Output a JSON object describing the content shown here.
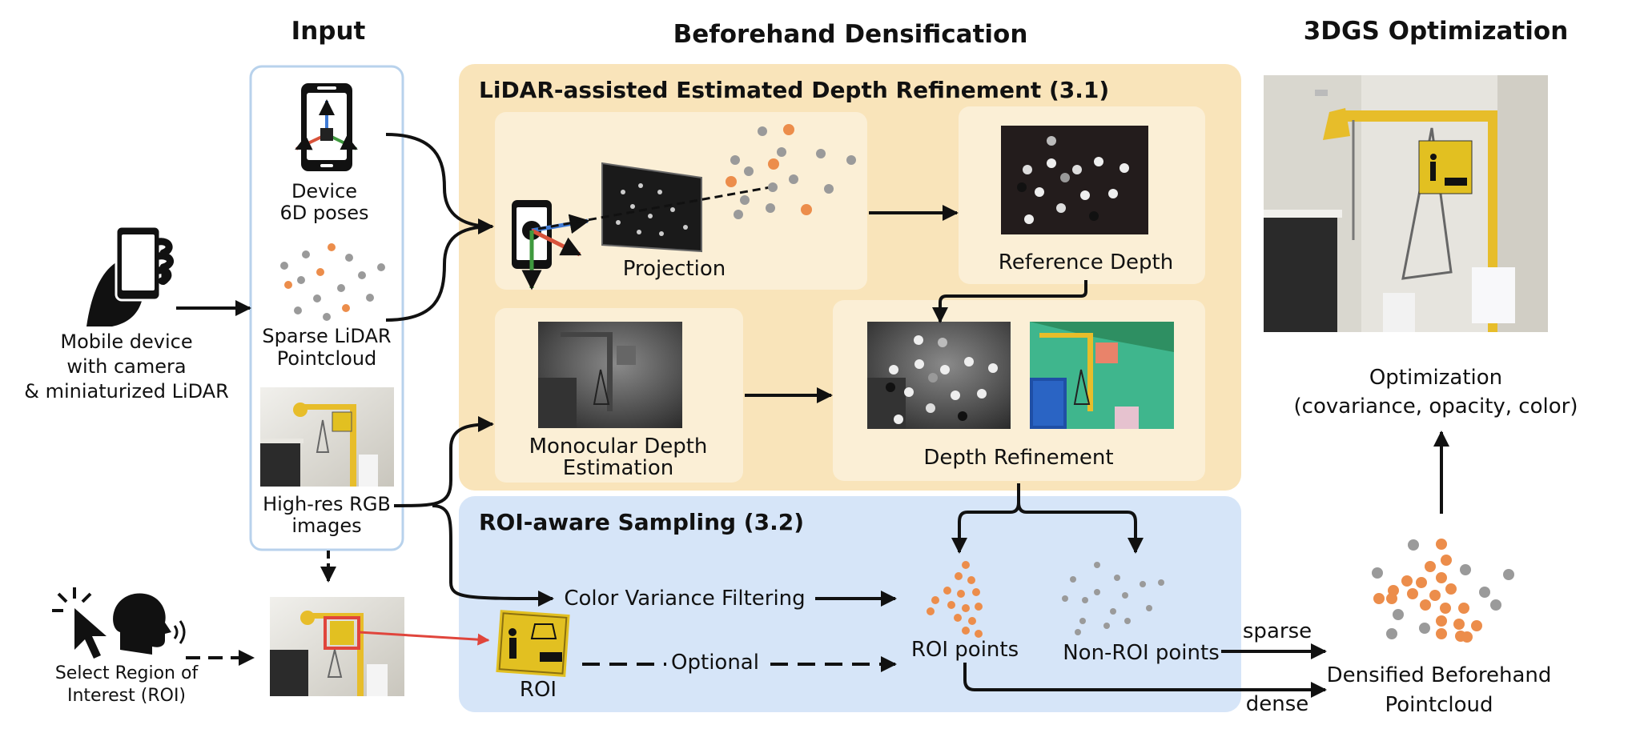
{
  "headings": {
    "input": "Input",
    "beforehand": "Beforehand Densification",
    "optimization": "3DGS Optimization"
  },
  "panels": {
    "lidar_title": "LiDAR-assisted Estimated Depth Refinement (3.1)",
    "roi_title": "ROI-aware Sampling (3.2)"
  },
  "input": {
    "device_poses": [
      "Device",
      "6D poses"
    ],
    "sparse_lidar": [
      "Sparse LiDAR",
      "Pointcloud"
    ],
    "rgb_images": [
      "High-res RGB",
      "images"
    ]
  },
  "mobile_device": [
    "Mobile device",
    "with camera",
    "& miniaturized LiDAR"
  ],
  "select_roi": [
    "Select Region of",
    "Interest (ROI)"
  ],
  "lidar_panel": {
    "projection": "Projection",
    "reference_depth": "Reference Depth",
    "monocular": [
      "Monocular Depth",
      "Estimation"
    ],
    "depth_refinement": "Depth Refinement"
  },
  "roi_panel": {
    "color_variance": "Color Variance Filtering",
    "roi": "ROI",
    "optional": "Optional",
    "roi_points": "ROI points",
    "non_roi_points": "Non-ROI points"
  },
  "right": {
    "optimization": [
      "Optimization",
      "(covariance, opacity, color)"
    ],
    "densified": [
      "Densified Beforehand",
      "Pointcloud"
    ],
    "sparse": "sparse",
    "dense": "dense"
  },
  "colors": {
    "lidar_panel_bg": "#f9e4ba",
    "lidar_box_bg": "#fbefd6",
    "roi_panel_bg": "#d6e5f8",
    "input_border": "#b8d2ec",
    "orange_point": "#ec8d4b",
    "gray_point": "#9a9a9a",
    "highlight_red": "#e0453c",
    "sign_yellow": "#e7bd2a",
    "axis_blue": "#3f7bd6",
    "axis_green": "#3f9a3e",
    "axis_red": "#d8533b"
  },
  "icons": [
    "phone-pose-icon",
    "hand-phone-icon",
    "cursor-click-icon",
    "speaking-head-icon",
    "roi-sign-icon",
    "projection-phone-icon"
  ]
}
